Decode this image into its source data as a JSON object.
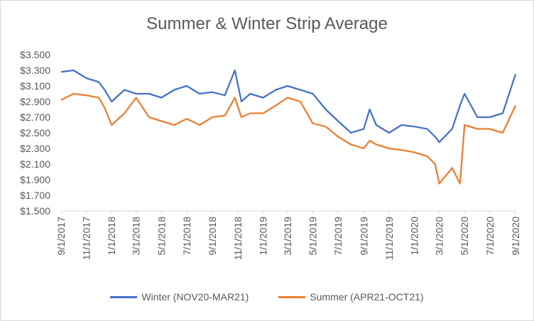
{
  "chart_data": {
    "type": "line",
    "title": "Summer & Winter Strip Average",
    "xlabel": "",
    "ylabel": "",
    "ylim": [
      1.5,
      3.5
    ],
    "yticks": [
      1.5,
      1.7,
      1.9,
      2.1,
      2.3,
      2.5,
      2.7,
      2.9,
      3.1,
      3.3,
      3.5
    ],
    "ytick_labels": [
      "$1.500",
      "$1.700",
      "$1.900",
      "$2.100",
      "$2.300",
      "$2.500",
      "$2.700",
      "$2.900",
      "$3.100",
      "$3.300",
      "$3.500"
    ],
    "xtick_labels": [
      "9/1/2017",
      "11/1/2017",
      "1/1/2018",
      "3/1/2018",
      "5/1/2018",
      "7/1/2018",
      "9/1/2018",
      "11/1/2018",
      "1/1/2019",
      "3/1/2019",
      "5/1/2019",
      "7/1/2019",
      "9/1/2019",
      "11/1/2019",
      "1/1/2020",
      "3/1/2020",
      "5/1/2020",
      "7/1/2020",
      "9/1/2020"
    ],
    "grid": false,
    "legend_position": "bottom",
    "series": [
      {
        "name": "Winter (NOV20-MAR21)",
        "color": "#4472c4",
        "x": [
          "9/1/2017",
          "10/1/2017",
          "11/1/2017",
          "12/1/2017",
          "12/15/2017",
          "1/1/2018",
          "2/1/2018",
          "3/1/2018",
          "4/1/2018",
          "5/1/2018",
          "6/1/2018",
          "7/1/2018",
          "8/1/2018",
          "9/1/2018",
          "10/1/2018",
          "10/25/2018",
          "11/10/2018",
          "12/1/2018",
          "1/1/2019",
          "2/1/2019",
          "3/1/2019",
          "4/1/2019",
          "5/1/2019",
          "6/1/2019",
          "7/1/2019",
          "8/1/2019",
          "9/1/2019",
          "9/15/2019",
          "10/1/2019",
          "11/1/2019",
          "12/1/2019",
          "1/1/2020",
          "2/1/2020",
          "2/20/2020",
          "3/1/2020",
          "4/1/2020",
          "4/20/2020",
          "5/1/2020",
          "6/1/2020",
          "7/1/2020",
          "8/1/2020",
          "9/1/2020"
        ],
        "values": [
          3.28,
          3.3,
          3.2,
          3.15,
          3.05,
          2.9,
          3.05,
          3.0,
          3.0,
          2.95,
          3.05,
          3.1,
          3.0,
          3.02,
          2.98,
          3.3,
          2.9,
          3.0,
          2.95,
          3.05,
          3.1,
          3.05,
          3.0,
          2.8,
          2.65,
          2.5,
          2.55,
          2.8,
          2.6,
          2.5,
          2.6,
          2.58,
          2.55,
          2.45,
          2.38,
          2.55,
          2.85,
          3.0,
          2.7,
          2.7,
          2.75,
          3.25
        ]
      },
      {
        "name": "Summer  (APR21-OCT21)",
        "color": "#ed7d31",
        "x": [
          "9/1/2017",
          "10/1/2017",
          "11/1/2017",
          "12/1/2017",
          "12/15/2017",
          "1/1/2018",
          "2/1/2018",
          "3/1/2018",
          "4/1/2018",
          "5/1/2018",
          "6/1/2018",
          "7/1/2018",
          "8/1/2018",
          "9/1/2018",
          "10/1/2018",
          "10/25/2018",
          "11/10/2018",
          "12/1/2018",
          "1/1/2019",
          "2/1/2019",
          "3/1/2019",
          "4/1/2019",
          "5/1/2019",
          "6/1/2019",
          "7/1/2019",
          "8/1/2019",
          "9/1/2019",
          "9/15/2019",
          "10/1/2019",
          "11/1/2019",
          "12/1/2019",
          "1/1/2020",
          "2/1/2020",
          "2/20/2020",
          "3/1/2020",
          "4/1/2020",
          "4/20/2020",
          "5/1/2020",
          "6/1/2020",
          "7/1/2020",
          "8/1/2020",
          "9/1/2020"
        ],
        "values": [
          2.92,
          3.0,
          2.98,
          2.95,
          2.82,
          2.6,
          2.75,
          2.95,
          2.7,
          2.65,
          2.6,
          2.68,
          2.6,
          2.7,
          2.72,
          2.95,
          2.7,
          2.75,
          2.75,
          2.85,
          2.95,
          2.9,
          2.62,
          2.58,
          2.45,
          2.35,
          2.3,
          2.4,
          2.35,
          2.3,
          2.28,
          2.25,
          2.2,
          2.1,
          1.85,
          2.05,
          1.85,
          2.6,
          2.55,
          2.55,
          2.5,
          2.85
        ]
      }
    ]
  }
}
